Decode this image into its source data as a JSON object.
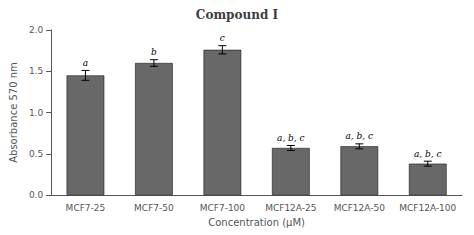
{
  "chart_data": {
    "type": "bar",
    "title": "Compound I",
    "xlabel": "Concentration (μM)",
    "ylabel": "Absorbance 570 nm",
    "categories": [
      "MCF7-25",
      "MCF7-50",
      "MCF7-100",
      "MCF12A-25",
      "MCF12A-50",
      "MCF12A-100"
    ],
    "values": [
      1.45,
      1.6,
      1.76,
      0.57,
      0.59,
      0.38
    ],
    "errors": [
      0.06,
      0.04,
      0.05,
      0.03,
      0.03,
      0.03
    ],
    "annotations": [
      "a",
      "b",
      "c",
      "a, b, c",
      "a, b, c",
      "a, b, c"
    ],
    "color": "#686868",
    "ylim": [
      0.0,
      2.0
    ],
    "yticks": [
      {
        "value": 0.0,
        "label": "0.0"
      },
      0.5,
      {
        "value": 1.0,
        "label": "1.0"
      },
      1.5,
      {
        "value": 2.0,
        "label": "2.0"
      }
    ],
    "grid": false
  }
}
